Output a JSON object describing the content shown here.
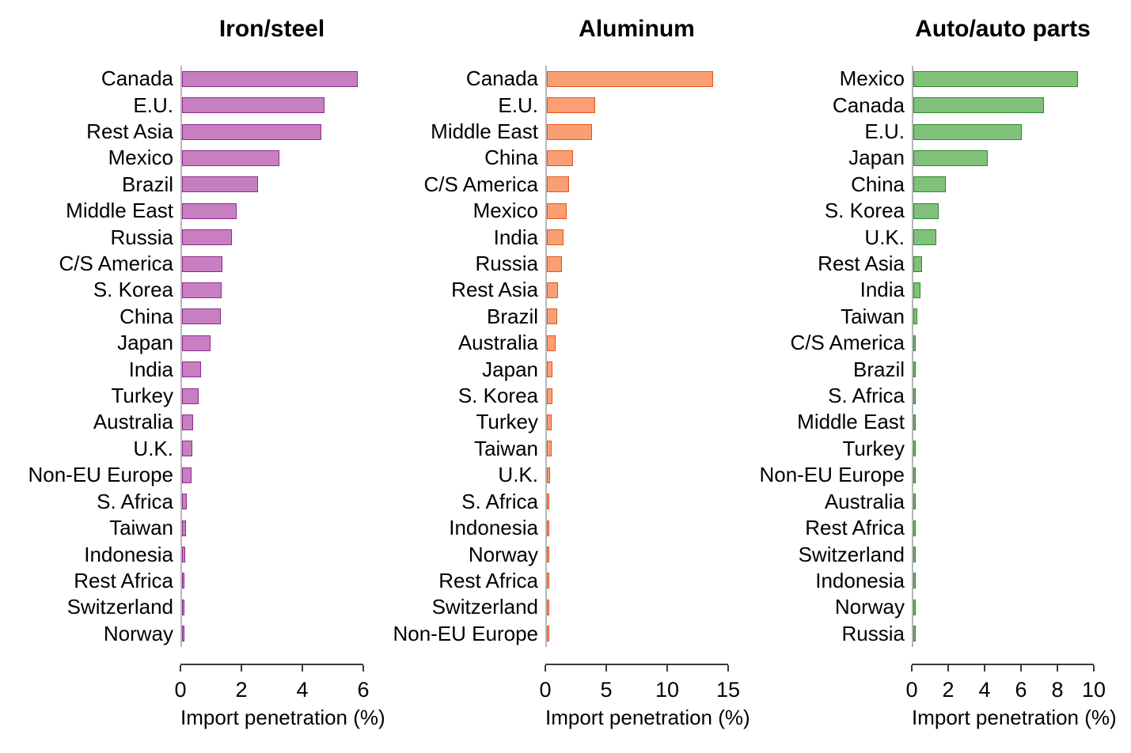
{
  "chart_data": {
    "type": "bar",
    "orientation": "horizontal",
    "grid": false,
    "legend": "none",
    "charts": [
      {
        "title": "Iron/steel",
        "xlabel": "Import penetration (%)",
        "xlim": [
          0,
          6
        ],
        "ticks": [
          0,
          2,
          4,
          6
        ],
        "fill_color": "#c77fc2",
        "border_color": "#8e2a8e",
        "bars": [
          {
            "label": "Canada",
            "value": 5.8
          },
          {
            "label": "E.U.",
            "value": 4.7
          },
          {
            "label": "Rest Asia",
            "value": 4.6
          },
          {
            "label": "Mexico",
            "value": 3.2
          },
          {
            "label": "Brazil",
            "value": 2.5
          },
          {
            "label": "Middle East",
            "value": 1.8
          },
          {
            "label": "Russia",
            "value": 1.65
          },
          {
            "label": "C/S America",
            "value": 1.33
          },
          {
            "label": "S. Korea",
            "value": 1.3
          },
          {
            "label": "China",
            "value": 1.28
          },
          {
            "label": "Japan",
            "value": 0.94
          },
          {
            "label": "India",
            "value": 0.62
          },
          {
            "label": "Turkey",
            "value": 0.54
          },
          {
            "label": "Australia",
            "value": 0.37
          },
          {
            "label": "U.K.",
            "value": 0.34
          },
          {
            "label": "Non-EU Europe",
            "value": 0.32
          },
          {
            "label": "S. Africa",
            "value": 0.15
          },
          {
            "label": "Taiwan",
            "value": 0.13
          },
          {
            "label": "Indonesia",
            "value": 0.1
          },
          {
            "label": "Rest Africa",
            "value": 0.04
          },
          {
            "label": "Switzerland",
            "value": 0.03
          },
          {
            "label": "Norway",
            "value": 0.02
          }
        ]
      },
      {
        "title": "Aluminum",
        "xlabel": "Import penetration (%)",
        "xlim": [
          0,
          15
        ],
        "ticks": [
          0,
          5,
          10,
          15
        ],
        "fill_color": "#fa9e73",
        "border_color": "#e8541a",
        "bars": [
          {
            "label": "Canada",
            "value": 13.7
          },
          {
            "label": "E.U.",
            "value": 4.0
          },
          {
            "label": "Middle East",
            "value": 3.7
          },
          {
            "label": "China",
            "value": 2.15
          },
          {
            "label": "C/S America",
            "value": 1.8
          },
          {
            "label": "Mexico",
            "value": 1.65
          },
          {
            "label": "India",
            "value": 1.38
          },
          {
            "label": "Russia",
            "value": 1.25
          },
          {
            "label": "Rest Asia",
            "value": 0.92
          },
          {
            "label": "Brazil",
            "value": 0.88
          },
          {
            "label": "Australia",
            "value": 0.74
          },
          {
            "label": "Japan",
            "value": 0.46
          },
          {
            "label": "S. Korea",
            "value": 0.45
          },
          {
            "label": "Turkey",
            "value": 0.39
          },
          {
            "label": "Taiwan",
            "value": 0.37
          },
          {
            "label": "U.K.",
            "value": 0.26
          },
          {
            "label": "S. Africa",
            "value": 0.17
          },
          {
            "label": "Indonesia",
            "value": 0.16
          },
          {
            "label": "Norway",
            "value": 0.1
          },
          {
            "label": "Rest Africa",
            "value": 0.08
          },
          {
            "label": "Switzerland",
            "value": 0.06
          },
          {
            "label": "Non-EU Europe",
            "value": 0.06
          }
        ]
      },
      {
        "title": "Auto/auto parts",
        "xlabel": "Import penetration (%)",
        "xlim": [
          0,
          10
        ],
        "ticks": [
          0,
          2,
          4,
          6,
          8,
          10
        ],
        "fill_color": "#82c17a",
        "border_color": "#2d872d",
        "bars": [
          {
            "label": "Mexico",
            "value": 9.1
          },
          {
            "label": "Canada",
            "value": 7.2
          },
          {
            "label": "E.U.",
            "value": 6.0
          },
          {
            "label": "Japan",
            "value": 4.1
          },
          {
            "label": "China",
            "value": 1.78
          },
          {
            "label": "S. Korea",
            "value": 1.4
          },
          {
            "label": "U.K.",
            "value": 1.28
          },
          {
            "label": "Rest Asia",
            "value": 0.5
          },
          {
            "label": "India",
            "value": 0.4
          },
          {
            "label": "Taiwan",
            "value": 0.23
          },
          {
            "label": "C/S America",
            "value": 0.1
          },
          {
            "label": "Brazil",
            "value": 0.08
          },
          {
            "label": "S. Africa",
            "value": 0.06
          },
          {
            "label": "Middle East",
            "value": 0.05
          },
          {
            "label": "Turkey",
            "value": 0.05
          },
          {
            "label": "Non-EU Europe",
            "value": 0.04
          },
          {
            "label": "Australia",
            "value": 0.04
          },
          {
            "label": "Rest Africa",
            "value": 0.03
          },
          {
            "label": "Switzerland",
            "value": 0.03
          },
          {
            "label": "Indonesia",
            "value": 0.03
          },
          {
            "label": "Norway",
            "value": 0.02
          },
          {
            "label": "Russia",
            "value": 0.05
          }
        ]
      }
    ]
  }
}
